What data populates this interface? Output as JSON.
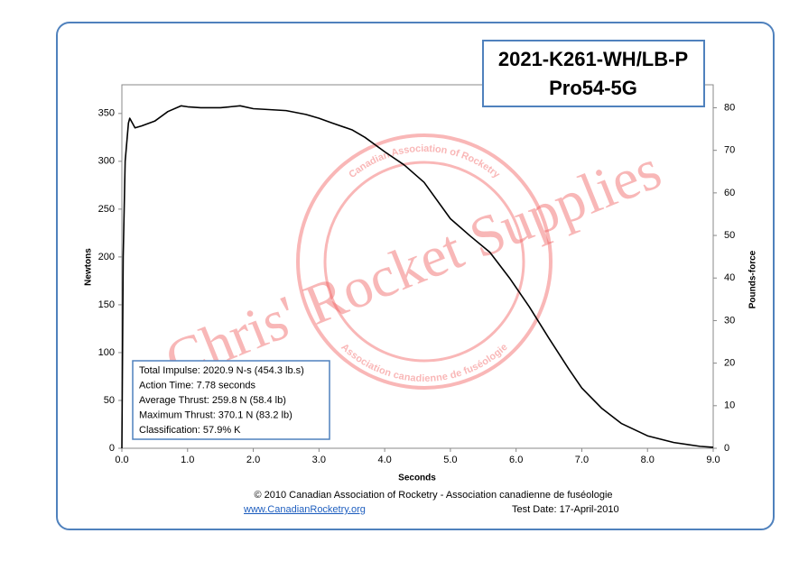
{
  "chart_data": {
    "type": "line",
    "title": "2021-K261-WH/LB-P",
    "subtitle": "Pro54-5G",
    "x_label": "Seconds",
    "y_label": "Newtons",
    "y2_label": "Pounds-force",
    "x": [
      0,
      0.02,
      0.05,
      0.1,
      0.12,
      0.2,
      0.3,
      0.5,
      0.7,
      0.9,
      1.0,
      1.2,
      1.5,
      1.8,
      2.0,
      2.5,
      2.8,
      3.0,
      3.2,
      3.5,
      3.7,
      4.0,
      4.3,
      4.6,
      5.0,
      5.3,
      5.6,
      5.9,
      6.2,
      6.5,
      6.8,
      7.0,
      7.3,
      7.6,
      8.0,
      8.4,
      8.8,
      9.0
    ],
    "series": [
      {
        "name": "Thrust",
        "color": "#000000",
        "values": [
          0,
          200,
          300,
          340,
          345,
          335,
          337,
          342,
          352,
          358,
          357,
          356,
          356,
          358,
          355,
          353,
          349,
          345,
          340,
          333,
          325,
          310,
          296,
          278,
          240,
          222,
          205,
          178,
          148,
          115,
          83,
          63,
          42,
          26,
          13,
          6,
          2,
          1
        ]
      }
    ],
    "xlim": [
      0,
      9
    ],
    "xticks": [
      {
        "value": 0,
        "label": "0.0"
      },
      {
        "value": 1,
        "label": "1.0"
      },
      {
        "value": 2,
        "label": "2.0"
      },
      {
        "value": 3,
        "label": "3.0"
      },
      {
        "value": 4,
        "label": "4.0"
      },
      {
        "value": 5,
        "label": "5.0"
      },
      {
        "value": 6,
        "label": "6.0"
      },
      {
        "value": 7,
        "label": "7.0"
      },
      {
        "value": 8,
        "label": "8.0"
      },
      {
        "value": 9,
        "label": "9.0"
      }
    ],
    "ylim": [
      0,
      380
    ],
    "yticks": [
      0,
      50,
      100,
      150,
      200,
      250,
      300,
      350
    ],
    "y2lim": [
      0,
      85.4
    ],
    "y2ticks": [
      0,
      10,
      20,
      30,
      40,
      50,
      60,
      70,
      80
    ],
    "annotations": [
      "Total Impulse: 2020.9 N-s (454.3 lb.s)",
      "Action Time: 7.78 seconds",
      "Average Thrust: 259.8 N (58.4 lb)",
      "Maximum Thrust: 370.1 N (83.2 lb)",
      "Classification: 57.9% K"
    ],
    "watermark": "Chris' Rocket Supplies",
    "stamp_top": "Canadian Association of Rocketry",
    "stamp_bottom": "Association canadienne de fuséologie",
    "footer": "© 2010 Canadian Association of Rocketry - Association canadienne de fuséologie",
    "link": "www.CanadianRocketry.org",
    "test_date": "Test  Date: 17-April-2010"
  }
}
